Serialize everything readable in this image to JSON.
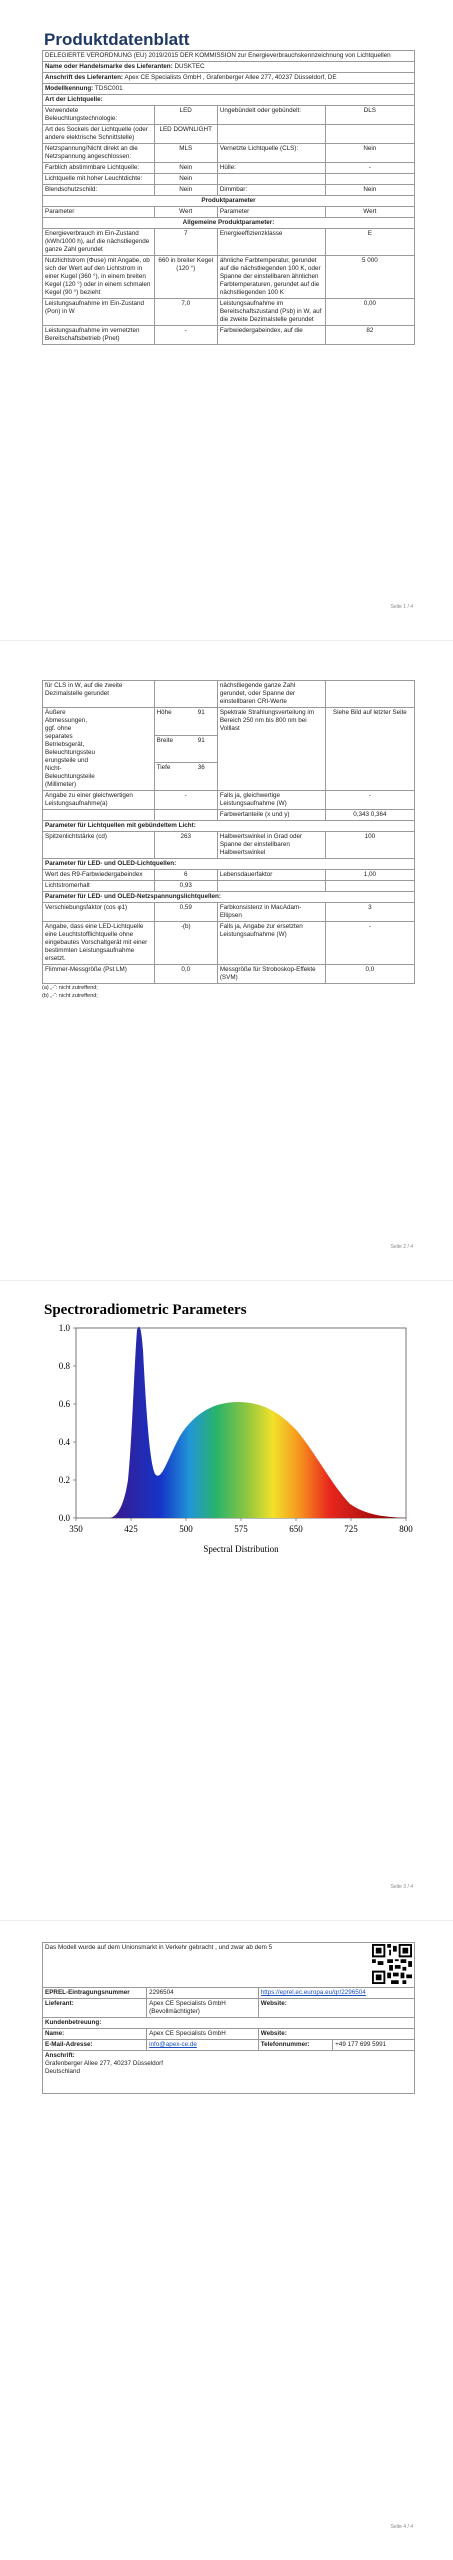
{
  "page1": {
    "title": "Produktdatenblatt",
    "regulation": "DELEGIERTE VERORDNUNG (EU) 2019/2015 DER KOMMISSION zur Energieverbrauchskennzeichnung von Lichtquellen",
    "supplier_rows": [
      {
        "label": "Name oder Handelsmarke des Lieferanten:",
        "value": "DUSKTEC"
      },
      {
        "label": "Anschrift des Lieferanten:",
        "value": "Apex CE Specialists GmbH , Grafenberger Allee 277, 40237 Düsseldorf, DE"
      },
      {
        "label": "Modellkennung:",
        "value": "TDSC001"
      }
    ],
    "type_heading": "Art der Lichtquelle:",
    "type_rows": [
      [
        "Verwendete Beleuchtungstechnologie:",
        "LED",
        "Ungebündelt oder gebündelt:",
        "DLS"
      ],
      [
        "Art des Sockels der Lichtquelle (oder andere elektrische Schnittstelle)",
        "LED DOWNLIGHT",
        null,
        null
      ],
      [
        "Netzspannung/Nicht direkt an die Netzspannung angeschlossen:",
        "MLS",
        "Vernetzte Lichtquelle (CLS):",
        "Nein"
      ],
      [
        "Farblich abstimmbare Lichtquelle:",
        "Nein",
        "Hülle:",
        "-"
      ],
      [
        "Lichtquelle mit hoher Leuchtdichte:",
        "Nein",
        null,
        null
      ],
      [
        "Blendschutzschild:",
        "Nein",
        "Dimmbar:",
        "Nein"
      ]
    ],
    "params_heading": "Produktparameter",
    "param_header": [
      "Parameter",
      "Wert",
      "Parameter",
      "Wert"
    ],
    "general_heading": "Allgemeine Produktparameter:",
    "general_rows": [
      [
        "Energieverbrauch im Ein-Zustand (kWh/1000 h), auf die nächstliegende ganze Zahl gerundet",
        "7",
        "Energieeffizienzklasse",
        "E"
      ],
      [
        "Nutzlichtstrom (Φuse) mit Angabe, ob sich der Wert auf den Lichtstrom in einer Kugel (360 °), in einem breiten Kegel (120 °) oder in einem schmalen Kegel (90 °) bezieht",
        "660 in breiter Kegel (120 °)",
        "ähnliche Farbtemperatur, gerundet auf die nächstliegenden 100 K, oder Spanne der einstellbaren ähnlichen Farbtemperaturen, gerundet auf die nächstliegenden 100 K",
        "5 000"
      ],
      [
        "Leistungsaufnahme im Ein-Zustand (Pon) in W",
        "7,0",
        "Leistungsaufnahme im Bereitschaftszustand (Psb) in W, auf die zweite Dezimalstelle gerundet",
        "0,00"
      ],
      [
        "Leistungsaufnahme im vernetzten Bereitschaftsbetrieb (Pnet)",
        "-",
        "Farbwiedergabeindex, auf die",
        "82"
      ]
    ],
    "footer": "Seite 1 / 4"
  },
  "page2": {
    "rows": [
      [
        "für CLS in W, auf die zweite Dezimalstelle gerundet",
        null,
        "nächstliegende ganze Zahl gerundet, oder Spanne der einstellbaren CRI-Werte",
        null
      ],
      {
        "label": "Äußere Abmessungen, ggf. ohne separates Betriebsgerät, Beleuchtungssteuerungsteile und Nicht-Beleuchtungsteile (Millimeter)",
        "items": [
          {
            "label": "Höhe",
            "value": "91"
          },
          {
            "label": "Breite",
            "value": "91"
          },
          {
            "label": "Tiefe",
            "value": "36"
          }
        ],
        "param": "Spektrale Strahlungsverteilung im Bereich 250 nm bis 800 nm bei Volllast",
        "value": "Siehe Bild auf letzter Seite"
      },
      [
        "Angabe zu einer gleichwertigen Leistungsaufnahme(a)",
        "-",
        "Falls ja, gleichwertige Leistungsaufnahme (W)",
        "-"
      ],
      [
        null,
        null,
        "Farbwertanteile (x und y)",
        "0,343 0,364"
      ],
      {
        "heading": "Parameter für Lichtquellen mit gebündeltem Licht:"
      },
      [
        "Spitzenlichtstärke (cd)",
        "263",
        "Halbwertswinkel in Grad oder Spanne der einstellbaren Halbwertswinkel",
        "100"
      ],
      {
        "heading": "Parameter für LED- und OLED-Lichtquellen:"
      },
      [
        "Wert des R9-Farbwiedergabeindex",
        "6",
        "Lebensdauerfaktor",
        "1,00"
      ],
      [
        "Lichtstromerhalt",
        "0,93",
        null,
        null
      ],
      {
        "heading": "Parameter für LED- und OLED-Netzspannungslichtquellen:"
      },
      [
        "Verschiebungsfaktor (cos φ1)",
        "0,59",
        "Farbkonsistenz in MacAdam-Ellipsen",
        "3"
      ],
      [
        "Angabe, dass eine LED-Lichtquelle eine Leuchtstofflichtquelle ohne eingebautes Vorschaltgerät mit einer bestimmten Leistungsaufnahme ersetzt.",
        "-(b)",
        "Falls ja, Angabe zur ersetzten Leistungsaufnahme (W)",
        "-"
      ],
      [
        "Flimmer-Messgröße (Pst LM)",
        "0,0",
        "Messgröße für Stroboskop-Effekte (SVM)",
        "0,0"
      ]
    ],
    "footnotes": [
      "(a) „-“: nicht zutreffend;",
      "(b) „-“: nicht zutreffend;"
    ],
    "footer": "Seite 2 / 4"
  },
  "page3": {
    "chart_title": "Spectroradiometric Parameters",
    "x_label": "Spectral Distribution",
    "yticks": [
      "1.0",
      "0.8",
      "0.6",
      "0.4",
      "0.2",
      "0.0"
    ],
    "xticks": [
      "350",
      "425",
      "500",
      "575",
      "650",
      "725",
      "800"
    ],
    "footer": "Seite 3 / 4"
  },
  "page4": {
    "intro": "Das Modell wurde auf dem Unionsmarkt in Verkehr gebracht , und zwar ab dem 5",
    "eprel_label": "EPREL-Eintragungsnummer",
    "eprel_value": "2296504",
    "eprel_link": "https://eprel.ec.europa.eu/qr/2296504",
    "supplier_label": "Lieferant:",
    "supplier_value": "Apex CE Specialists GmbH (Bevollmächtigter)",
    "supplier_website": "Website:",
    "support_heading": "Kundenbetreuung:",
    "name_label": "Name:",
    "name_value": "Apex CE Specialists GmbH",
    "name_website": "Website:",
    "email_label": "E-Mail-Adresse:",
    "email_value": "info@apex-ce.de",
    "phone_label": "Telefonnummer:",
    "phone_value": "+49 177 699 5991",
    "address_label": "Anschrift:",
    "address_lines": [
      "Grafenberger Allee 277, 40237 Düsseldorf",
      "Deutschland"
    ],
    "footer": "Seite 4 / 4"
  }
}
